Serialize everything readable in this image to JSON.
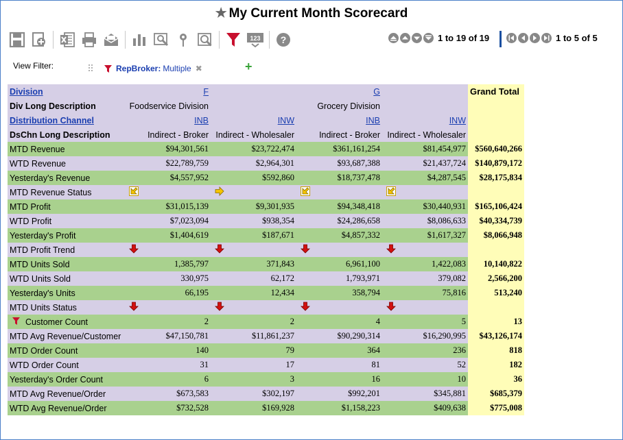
{
  "title": "My Current Month Scorecard",
  "toolbar": [
    "save-icon",
    "add-icon",
    "excel-icon",
    "print-icon",
    "email-icon",
    "chart-icon",
    "analyze-icon",
    "map-icon",
    "zoom-icon",
    "filter-icon",
    "number-format-icon",
    "help-icon"
  ],
  "pager_rows": {
    "text": "1 to 19 of 19"
  },
  "pager_cols": {
    "text": "1 to 5 of 5"
  },
  "view_filter": {
    "label": "View Filter:",
    "name": "RepBroker:",
    "value": "Multiple"
  },
  "headers": {
    "division_label": "Division",
    "div_desc_label": "Div Long Description",
    "channel_label": "Distribution Channel",
    "chn_desc_label": "DsChn Long Description",
    "grand_total": "Grand Total",
    "div_f": "F",
    "div_g": "G",
    "div_f_desc": "Foodservice Division",
    "div_g_desc": "Grocery Division",
    "ch": [
      "INB",
      "INW",
      "INB",
      "INW"
    ],
    "ch_desc": [
      "Indirect - Broker",
      "Indirect - Wholesaler",
      "Indirect - Broker",
      "Indirect - Wholesaler"
    ]
  },
  "rows": [
    {
      "label": "MTD Revenue",
      "v": [
        "$94,301,561",
        "$23,722,474",
        "$361,161,254",
        "$81,454,977"
      ],
      "total": "$560,640,266",
      "color": "green"
    },
    {
      "label": "WTD Revenue",
      "v": [
        "$22,789,759",
        "$2,964,301",
        "$93,687,388",
        "$21,437,724"
      ],
      "total": "$140,879,172",
      "color": "purple"
    },
    {
      "label": "Yesterday's Revenue",
      "v": [
        "$4,557,952",
        "$592,860",
        "$18,737,478",
        "$4,287,545"
      ],
      "total": "$28,175,834",
      "color": "green"
    },
    {
      "label": "MTD Revenue Status",
      "icons": [
        "arrow-down-left-yellow-icon",
        "arrow-right-yellow-icon",
        "arrow-down-left-yellow-icon",
        "arrow-down-left-yellow-icon"
      ],
      "color": "purple"
    },
    {
      "label": "MTD Profit",
      "v": [
        "$31,015,139",
        "$9,301,935",
        "$94,348,418",
        "$30,440,931"
      ],
      "total": "$165,106,424",
      "color": "green"
    },
    {
      "label": "WTD Profit",
      "v": [
        "$7,023,094",
        "$938,354",
        "$24,286,658",
        "$8,086,633"
      ],
      "total": "$40,334,739",
      "color": "purple"
    },
    {
      "label": "Yesterday's Profit",
      "v": [
        "$1,404,619",
        "$187,671",
        "$4,857,332",
        "$1,617,327"
      ],
      "total": "$8,066,948",
      "color": "green"
    },
    {
      "label": "MTD Profit Trend",
      "icons": [
        "arrow-down-red-icon",
        "arrow-down-red-icon",
        "arrow-down-red-icon",
        "arrow-down-red-icon"
      ],
      "color": "purple"
    },
    {
      "label": "MTD Units Sold",
      "v": [
        "1,385,797",
        "371,843",
        "6,961,100",
        "1,422,083"
      ],
      "total": "10,140,822",
      "color": "green"
    },
    {
      "label": "WTD Units Sold",
      "v": [
        "330,975",
        "62,172",
        "1,793,971",
        "379,082"
      ],
      "total": "2,566,200",
      "color": "purple"
    },
    {
      "label": "Yesterday's Units",
      "v": [
        "66,195",
        "12,434",
        "358,794",
        "75,816"
      ],
      "total": "513,240",
      "color": "green"
    },
    {
      "label": "MTD Units Status",
      "icons": [
        "arrow-down-red-icon",
        "arrow-down-red-icon",
        "arrow-down-red-icon",
        "arrow-down-red-icon"
      ],
      "color": "purple"
    },
    {
      "label": "Customer Count",
      "filter": true,
      "v": [
        "2",
        "2",
        "4",
        "5"
      ],
      "total": "13",
      "color": "green"
    },
    {
      "label": "MTD Avg Revenue/Customer",
      "v": [
        "$47,150,781",
        "$11,861,237",
        "$90,290,314",
        "$16,290,995"
      ],
      "total": "$43,126,174",
      "color": "purple"
    },
    {
      "label": "MTD Order Count",
      "v": [
        "140",
        "79",
        "364",
        "236"
      ],
      "total": "818",
      "color": "green"
    },
    {
      "label": "WTD Order Count",
      "v": [
        "31",
        "17",
        "81",
        "52"
      ],
      "total": "182",
      "color": "purple"
    },
    {
      "label": "Yesterday's Order Count",
      "v": [
        "6",
        "3",
        "16",
        "10"
      ],
      "total": "36",
      "color": "green"
    },
    {
      "label": "MTD Avg Revenue/Order",
      "v": [
        "$673,583",
        "$302,197",
        "$992,201",
        "$345,881"
      ],
      "total": "$685,379",
      "color": "purple"
    },
    {
      "label": "WTD Avg Revenue/Order",
      "v": [
        "$732,528",
        "$169,928",
        "$1,158,223",
        "$409,638"
      ],
      "total": "$775,008",
      "color": "green"
    }
  ]
}
